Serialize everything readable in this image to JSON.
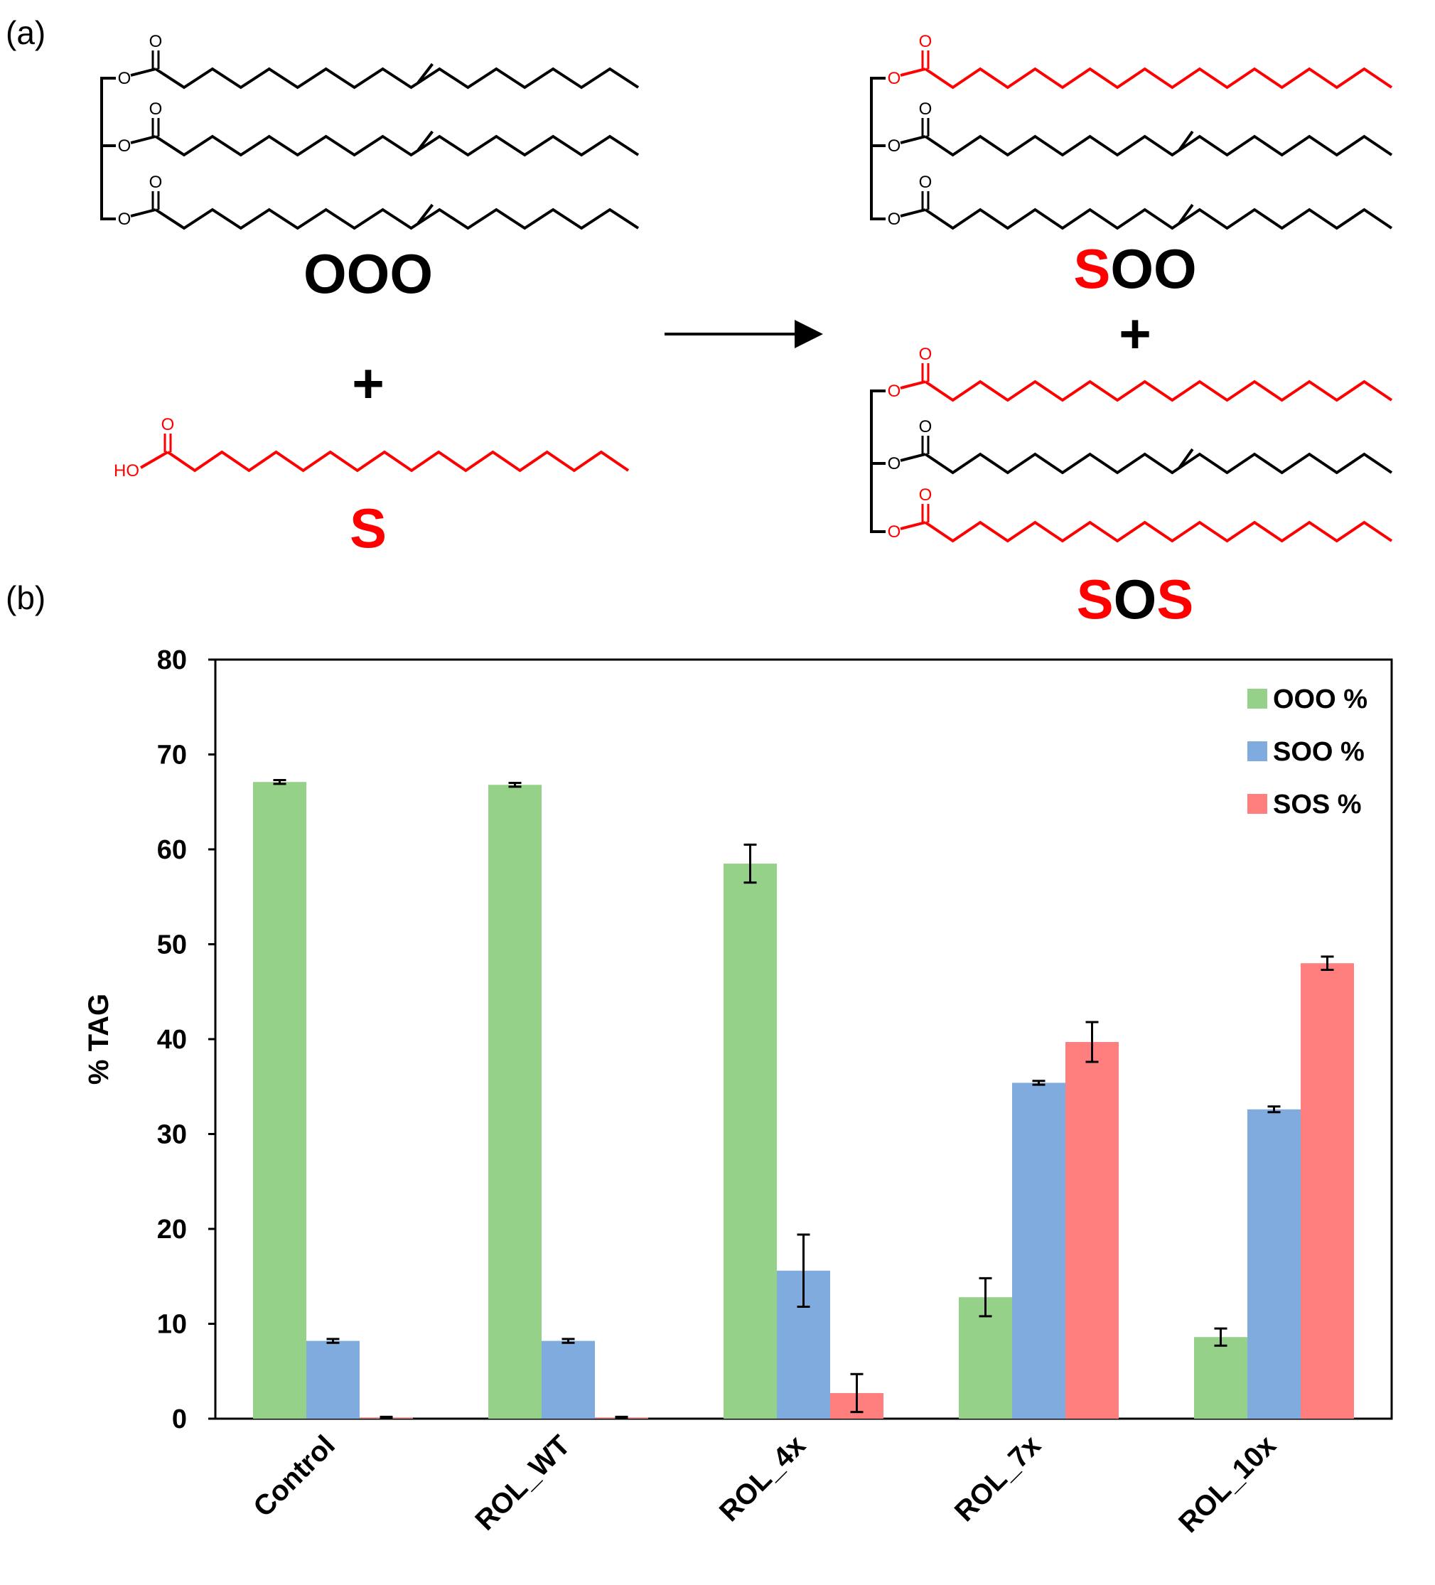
{
  "panel_a": {
    "label": "(a)",
    "reactant_tag": "OOO",
    "plus_1": "+",
    "acid_label": "S",
    "acid_atom": "HO",
    "product_1": {
      "first": "S",
      "rest": "OO"
    },
    "plus_2": "+",
    "product_2": {
      "first": "S",
      "middle": "O",
      "last": "S"
    },
    "atom_o": "O",
    "colors": {
      "saturated": "#ff0000",
      "oleic": "#000000"
    }
  },
  "panel_b": {
    "label": "(b)"
  },
  "chart_data": {
    "type": "bar",
    "title": "",
    "xlabel": "",
    "ylabel": "% TAG",
    "ylim": [
      0,
      80
    ],
    "yticks": [
      "0",
      "10",
      "20",
      "30",
      "40",
      "50",
      "60",
      "70",
      "80"
    ],
    "categories": [
      "Control",
      "ROL_WT",
      "ROL_4x",
      "ROL_7x",
      "ROL_10x"
    ],
    "series": [
      {
        "name": "OOO %",
        "color": "#96d189",
        "values": [
          67.1,
          66.8,
          58.5,
          12.8,
          8.6
        ],
        "errors": [
          0.2,
          0.2,
          2.0,
          2.0,
          0.9
        ]
      },
      {
        "name": "SOO %",
        "color": "#7fabdf",
        "values": [
          8.2,
          8.2,
          15.6,
          35.4,
          32.6
        ],
        "errors": [
          0.2,
          0.2,
          3.8,
          0.2,
          0.3
        ]
      },
      {
        "name": "SOS %",
        "color": "#ff7f7f",
        "values": [
          0.1,
          0.1,
          2.7,
          39.7,
          48.0
        ],
        "errors": [
          0.1,
          0.1,
          2.0,
          2.1,
          0.7
        ]
      }
    ],
    "legend_position": "top-right",
    "grid": false
  }
}
